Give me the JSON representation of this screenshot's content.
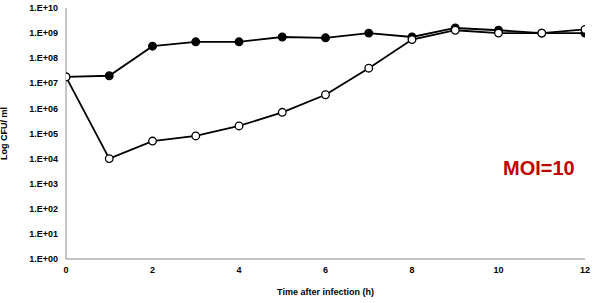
{
  "chart_data": {
    "type": "line",
    "x_label": "Time after infection (h)",
    "y_label": "Log CFU/ ml",
    "annotations": [
      {
        "text": "MOI=10",
        "color": "#c00000"
      }
    ],
    "x": [
      0,
      1,
      2,
      3,
      4,
      5,
      6,
      7,
      8,
      9,
      10,
      11,
      12
    ],
    "series": [
      {
        "color": "#000000",
        "marker": "filled_circle",
        "line_style": "solid",
        "values": [
          18000000,
          20000000,
          300000000,
          450000000,
          450000000,
          700000000,
          650000000,
          1000000000,
          700000000,
          1600000000,
          1300000000,
          1000000000,
          1000000000
        ]
      },
      {
        "color": "#000000",
        "marker": "open_circle",
        "line_style": "solid",
        "values": [
          18000000,
          10000,
          50000,
          80000,
          200000,
          700000,
          3500000,
          40000000,
          550000000,
          1300000000,
          1000000000,
          1000000000,
          1400000000
        ]
      }
    ],
    "xlim": [
      0,
      12
    ],
    "xticks": [
      0,
      2,
      4,
      6,
      8,
      10,
      12
    ],
    "ylim": [
      1,
      10000000000
    ],
    "yticks": [
      {
        "value": 1,
        "label": "1.E+00"
      },
      {
        "value": 10,
        "label": "1.E+01"
      },
      {
        "value": 100,
        "label": "1.E+02"
      },
      {
        "value": 1000,
        "label": "1.E+03"
      },
      {
        "value": 10000,
        "label": "1.E+04"
      },
      {
        "value": 100000,
        "label": "1.E+05"
      },
      {
        "value": 1000000,
        "label": "1.E+06"
      },
      {
        "value": 10000000,
        "label": "1.E+07"
      },
      {
        "value": 100000000,
        "label": "1.E+08"
      },
      {
        "value": 1000000000,
        "label": "1.E+09"
      },
      {
        "value": 10000000000,
        "label": "1.E+10"
      }
    ],
    "log": "y",
    "grid": false
  }
}
